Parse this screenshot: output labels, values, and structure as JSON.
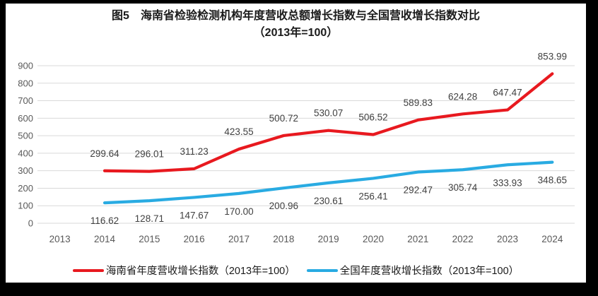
{
  "title": {
    "line1": "图5　海南省检验检测机构年度营收总额增长指数与全国营收增长指数对比",
    "line2": "（2013年=100）"
  },
  "chart_data": {
    "type": "line",
    "categories": [
      "2013",
      "2014",
      "2015",
      "2016",
      "2017",
      "2018",
      "2019",
      "2020",
      "2021",
      "2022",
      "2023",
      "2024"
    ],
    "series": [
      {
        "name": "海南省年度营收增长指数（2013年=100）",
        "color": "#e8191f",
        "start_index": 1,
        "label_position": "above",
        "values": [
          299.64,
          296.01,
          311.23,
          423.55,
          500.72,
          530.07,
          506.52,
          589.83,
          624.28,
          647.47,
          853.99
        ]
      },
      {
        "name": "全国年度营收增长指数（2013年=100）",
        "color": "#29abe2",
        "start_index": 1,
        "label_position": "below",
        "values": [
          116.62,
          128.71,
          147.67,
          170.0,
          200.96,
          230.61,
          256.41,
          292.47,
          305.74,
          333.93,
          348.65
        ]
      }
    ],
    "ylim": [
      0,
      900
    ],
    "ytick_step": 100,
    "grid": true,
    "legend_position": "bottom",
    "value_label_decimals": 2
  },
  "colors": {
    "gridline": "#d9d9d9",
    "tick_label": "#595959",
    "value_label": "#404040"
  }
}
